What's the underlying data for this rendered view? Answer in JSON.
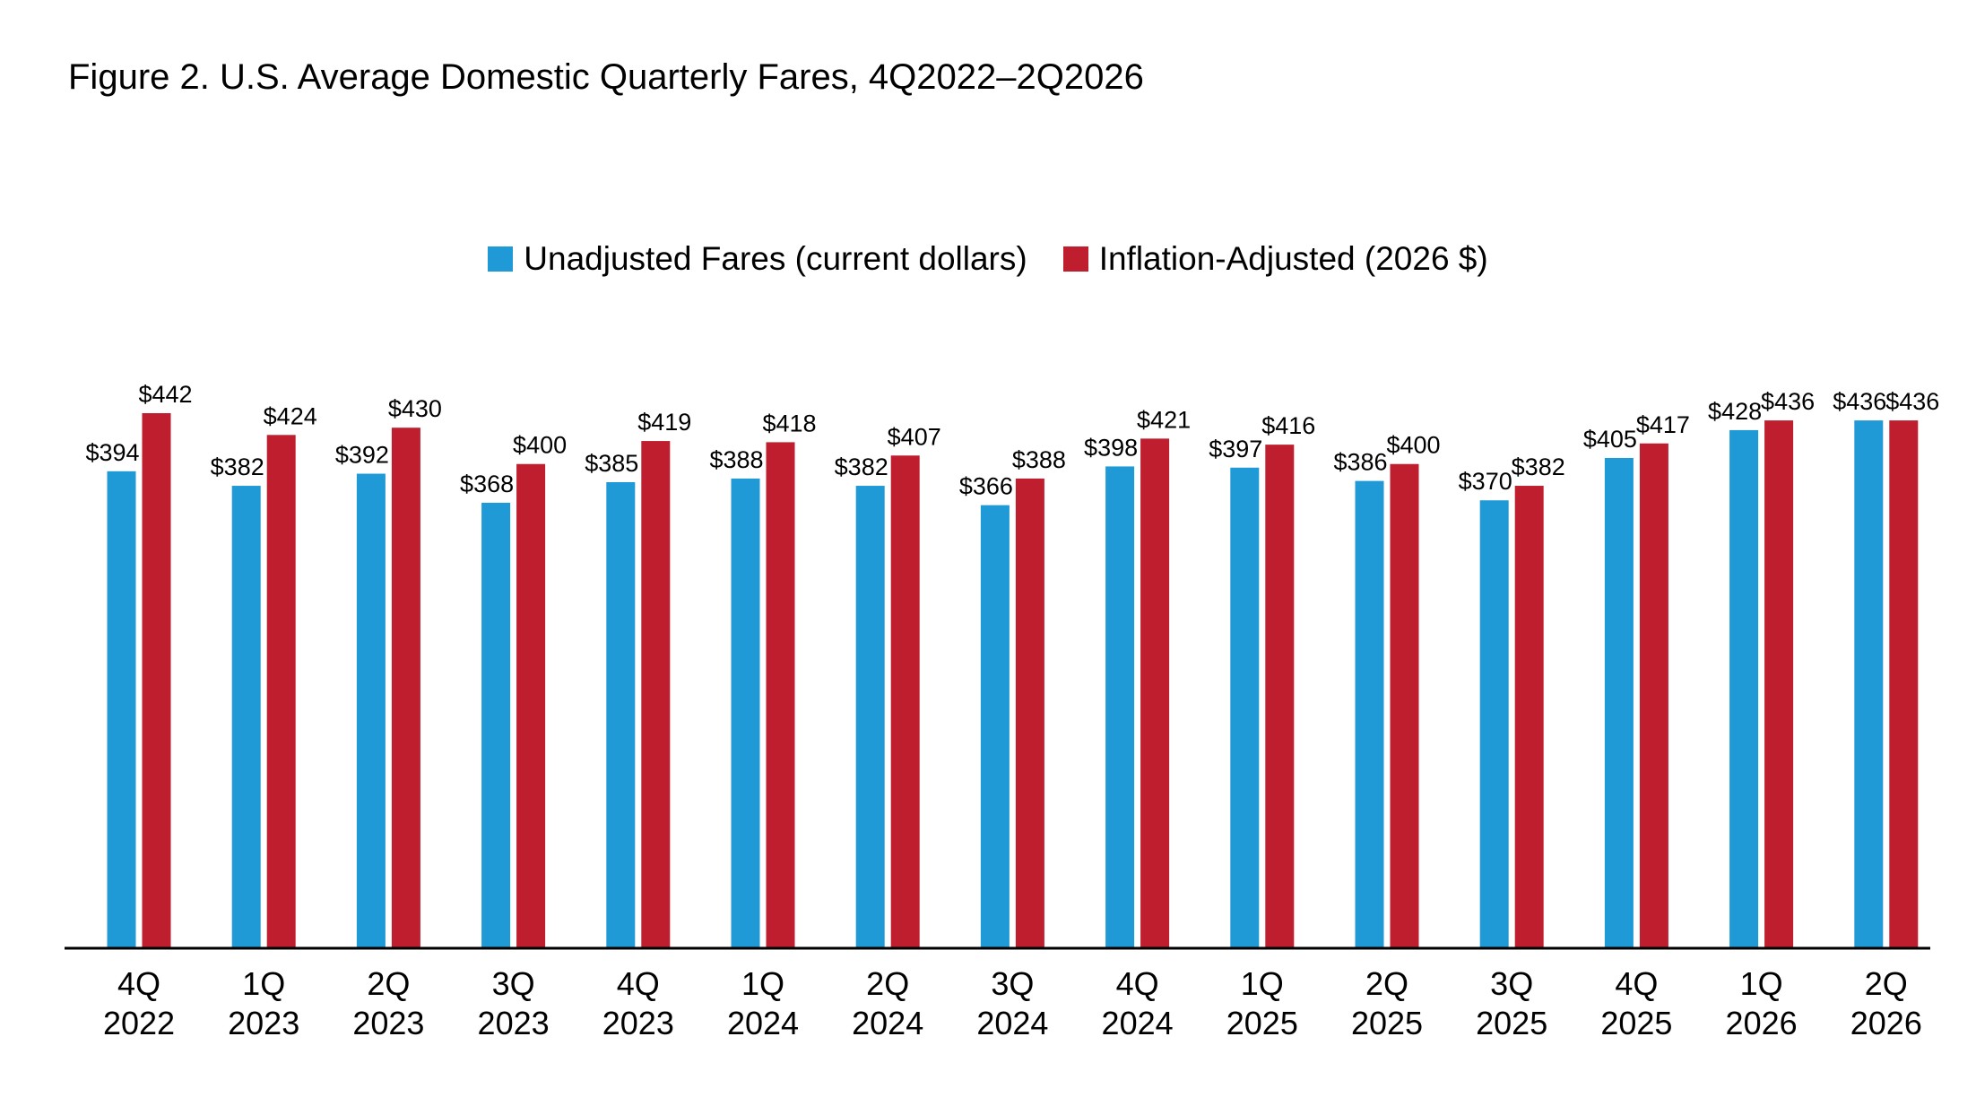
{
  "chart_data": {
    "type": "bar",
    "title": "Figure 2. U.S. Average Domestic Quarterly Fares, 4Q2022–2Q2026",
    "xlabel": "",
    "ylabel": "",
    "ylim": [
      0,
      450
    ],
    "grid": false,
    "legend_position": "top-center",
    "categories": [
      [
        "4Q",
        "2022"
      ],
      [
        "1Q",
        "2023"
      ],
      [
        "2Q",
        "2023"
      ],
      [
        "3Q",
        "2023"
      ],
      [
        "4Q",
        "2023"
      ],
      [
        "1Q",
        "2024"
      ],
      [
        "2Q",
        "2024"
      ],
      [
        "3Q",
        "2024"
      ],
      [
        "4Q",
        "2024"
      ],
      [
        "1Q",
        "2025"
      ],
      [
        "2Q",
        "2025"
      ],
      [
        "3Q",
        "2025"
      ],
      [
        "4Q",
        "2025"
      ],
      [
        "1Q",
        "2026"
      ],
      [
        "2Q",
        "2026"
      ]
    ],
    "series": [
      {
        "name": "Unadjusted Fares (current dollars)",
        "color": "#1f9ad6",
        "values": [
          394,
          382,
          392,
          368,
          385,
          388,
          382,
          366,
          398,
          397,
          386,
          370,
          405,
          428,
          436
        ],
        "labels": [
          "$394",
          "$382",
          "$392",
          "$368",
          "$385",
          "$388",
          "$382",
          "$366",
          "$398",
          "$397",
          "$386",
          "$370",
          "$405",
          "$428",
          "$436"
        ]
      },
      {
        "name": "Inflation-Adjusted (2026 $)",
        "color": "#be1e2d",
        "values": [
          442,
          424,
          430,
          400,
          419,
          418,
          407,
          388,
          421,
          416,
          400,
          382,
          417,
          436,
          436
        ],
        "labels": [
          "$442",
          "$424",
          "$430",
          "$400",
          "$419",
          "$418",
          "$407",
          "$388",
          "$421",
          "$416",
          "$400",
          "$382",
          "$417",
          "$436",
          "$436"
        ]
      }
    ]
  }
}
